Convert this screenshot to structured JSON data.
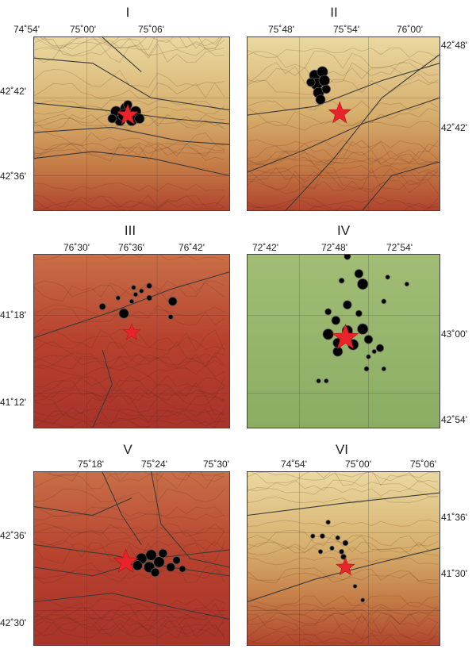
{
  "panels": [
    {
      "id": "I",
      "lon_ticks": [
        "74˚54'",
        "75˚00'",
        "75˚06'"
      ],
      "lat_ticks": [
        "42˚42'",
        "42˚36'"
      ],
      "lat_side": "left",
      "background": "relief-tan",
      "epicenters": [
        [
          0.42,
          0.43,
          0.05
        ],
        [
          0.47,
          0.41,
          0.05
        ],
        [
          0.52,
          0.43,
          0.05
        ],
        [
          0.44,
          0.48,
          0.05
        ],
        [
          0.5,
          0.48,
          0.05
        ],
        [
          0.46,
          0.45,
          0.055
        ],
        [
          0.4,
          0.47,
          0.04
        ],
        [
          0.54,
          0.47,
          0.045
        ],
        [
          0.48,
          0.39,
          0.04
        ]
      ],
      "star": [
        0.48,
        0.45,
        0.055
      ]
    },
    {
      "id": "II",
      "lon_ticks": [
        "75˚48'",
        "75˚54'",
        "76˚00'"
      ],
      "lat_ticks": [
        "42˚48'",
        "42˚42'"
      ],
      "lat_side": "right",
      "background": "relief-tan",
      "epicenters": [
        [
          0.35,
          0.22,
          0.05
        ],
        [
          0.39,
          0.2,
          0.05
        ],
        [
          0.36,
          0.27,
          0.055
        ],
        [
          0.4,
          0.25,
          0.05
        ],
        [
          0.37,
          0.32,
          0.05
        ],
        [
          0.33,
          0.26,
          0.04
        ],
        [
          0.38,
          0.36,
          0.045
        ],
        [
          0.41,
          0.3,
          0.04
        ]
      ],
      "star": [
        0.48,
        0.44,
        0.06
      ]
    },
    {
      "id": "III",
      "lon_ticks": [
        "76˚30'",
        "76˚36'",
        "76˚42'"
      ],
      "lat_ticks": [
        "41˚18'",
        "41˚12'"
      ],
      "lat_side": "left",
      "background": "relief-red",
      "epicenters": [
        [
          0.51,
          0.19,
          0.02
        ],
        [
          0.55,
          0.21,
          0.02
        ],
        [
          0.52,
          0.23,
          0.02
        ],
        [
          0.5,
          0.27,
          0.02
        ],
        [
          0.43,
          0.25,
          0.02
        ],
        [
          0.59,
          0.18,
          0.025
        ],
        [
          0.59,
          0.25,
          0.025
        ],
        [
          0.71,
          0.27,
          0.04
        ],
        [
          0.35,
          0.3,
          0.03
        ],
        [
          0.46,
          0.34,
          0.045
        ],
        [
          0.7,
          0.36,
          0.022
        ]
      ],
      "star": [
        0.5,
        0.45,
        0.045
      ]
    },
    {
      "id": "IV",
      "lon_ticks": [
        "72˚42'",
        "72˚48'",
        "72˚54'"
      ],
      "lat_ticks": [
        "43˚00'",
        "42˚54'"
      ],
      "lat_side": "right",
      "background": "flat-green",
      "epicenters": [
        [
          0.52,
          0.01,
          0.03
        ],
        [
          0.58,
          0.11,
          0.04
        ],
        [
          0.6,
          0.17,
          0.05
        ],
        [
          0.49,
          0.15,
          0.025
        ],
        [
          0.73,
          0.13,
          0.02
        ],
        [
          0.83,
          0.17,
          0.02
        ],
        [
          0.71,
          0.27,
          0.022
        ],
        [
          0.52,
          0.29,
          0.04
        ],
        [
          0.46,
          0.38,
          0.04
        ],
        [
          0.42,
          0.46,
          0.05
        ],
        [
          0.47,
          0.51,
          0.045
        ],
        [
          0.55,
          0.52,
          0.05
        ],
        [
          0.52,
          0.44,
          0.05
        ],
        [
          0.6,
          0.43,
          0.05
        ],
        [
          0.63,
          0.49,
          0.04
        ],
        [
          0.58,
          0.34,
          0.03
        ],
        [
          0.42,
          0.33,
          0.03
        ],
        [
          0.69,
          0.54,
          0.035
        ],
        [
          0.66,
          0.56,
          0.02
        ],
        [
          0.63,
          0.59,
          0.02
        ],
        [
          0.62,
          0.66,
          0.022
        ],
        [
          0.71,
          0.66,
          0.02
        ],
        [
          0.41,
          0.73,
          0.02
        ],
        [
          0.37,
          0.73,
          0.02
        ],
        [
          0.47,
          0.56,
          0.045
        ]
      ],
      "star": [
        0.51,
        0.48,
        0.07
      ]
    },
    {
      "id": "V",
      "lon_ticks": [
        "75˚18'",
        "75˚24'",
        "75˚30'"
      ],
      "lat_ticks": [
        "42˚36'",
        "42˚30'"
      ],
      "lat_side": "left",
      "background": "relief-red",
      "epicenters": [
        [
          0.55,
          0.5,
          0.05
        ],
        [
          0.6,
          0.48,
          0.05
        ],
        [
          0.64,
          0.52,
          0.05
        ],
        [
          0.59,
          0.55,
          0.05
        ],
        [
          0.66,
          0.47,
          0.04
        ],
        [
          0.7,
          0.55,
          0.04
        ],
        [
          0.73,
          0.51,
          0.035
        ],
        [
          0.53,
          0.54,
          0.045
        ],
        [
          0.62,
          0.58,
          0.04
        ],
        [
          0.76,
          0.56,
          0.03
        ]
      ],
      "star": [
        0.47,
        0.52,
        0.065
      ]
    },
    {
      "id": "VI",
      "lon_ticks": [
        "74˚54'",
        "75˚00'",
        "75˚06'"
      ],
      "lat_ticks": [
        "41˚36'",
        "41˚30'"
      ],
      "lat_side": "right",
      "background": "relief-tan",
      "epicenters": [
        [
          0.42,
          0.29,
          0.02
        ],
        [
          0.34,
          0.37,
          0.02
        ],
        [
          0.39,
          0.37,
          0.022
        ],
        [
          0.47,
          0.38,
          0.02
        ],
        [
          0.44,
          0.44,
          0.02
        ],
        [
          0.38,
          0.46,
          0.02
        ],
        [
          0.49,
          0.46,
          0.022
        ],
        [
          0.5,
          0.49,
          0.025
        ],
        [
          0.51,
          0.41,
          0.025
        ],
        [
          0.56,
          0.66,
          0.018
        ],
        [
          0.6,
          0.74,
          0.018
        ]
      ],
      "star": [
        0.51,
        0.55,
        0.05
      ]
    }
  ],
  "colors": {
    "epicenter": "#000000",
    "star": "#e8232a",
    "fault": "#3a3a3a",
    "green": "#8fb266",
    "red": "#b93b2e",
    "tan": "#cfa56a"
  }
}
